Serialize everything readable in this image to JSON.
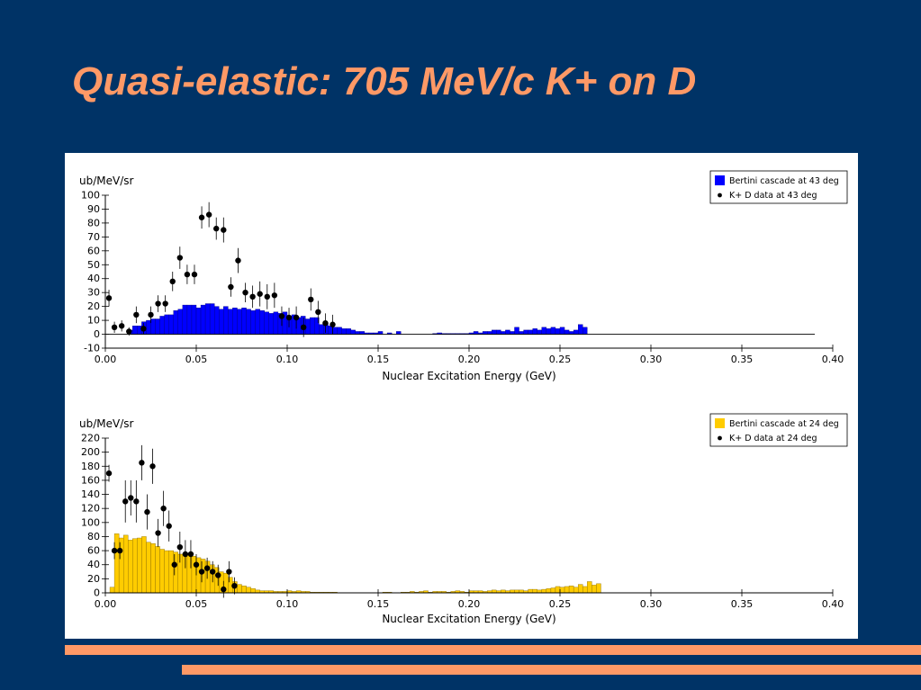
{
  "slide": {
    "title": "Quasi-elastic: 705 MeV/c K+ on D"
  },
  "colors": {
    "background": "#003366",
    "accent": "#ff9966",
    "panel": "#ffffff",
    "bars_top": "#0000ff",
    "bars_bottom": "#ffcc00"
  },
  "chart_data": [
    {
      "type": "bar",
      "ylabel": "ub/MeV/sr",
      "xlabel": "Nuclear Excitation Energy (GeV)",
      "xlim": [
        0,
        0.4
      ],
      "ylim": [
        -10,
        100
      ],
      "xticks": [
        "0.00",
        "0.05",
        "0.10",
        "0.15",
        "0.20",
        "0.25",
        "0.30",
        "0.35",
        "0.40"
      ],
      "yticks": [
        "-10",
        "0",
        "10",
        "20",
        "30",
        "40",
        "50",
        "60",
        "70",
        "80",
        "90",
        "100"
      ],
      "legend_position": "top-right",
      "grid": false,
      "series": [
        {
          "name": "Bertini cascade at 43 deg",
          "kind": "histogram",
          "bin_width": 0.0025,
          "x": [
            0.0125,
            0.015,
            0.0175,
            0.02,
            0.0225,
            0.025,
            0.0275,
            0.03,
            0.0325,
            0.035,
            0.0375,
            0.04,
            0.0425,
            0.045,
            0.0475,
            0.05,
            0.0525,
            0.055,
            0.0575,
            0.06,
            0.0625,
            0.065,
            0.0675,
            0.07,
            0.0725,
            0.075,
            0.0775,
            0.08,
            0.0825,
            0.085,
            0.0875,
            0.09,
            0.0925,
            0.095,
            0.0975,
            0.1,
            0.1025,
            0.105,
            0.1075,
            0.11,
            0.1125,
            0.115,
            0.1175,
            0.12,
            0.1225,
            0.125,
            0.1275,
            0.13,
            0.1325,
            0.135,
            0.1375,
            0.14,
            0.1425,
            0.145,
            0.1475,
            0.15,
            0.155,
            0.16,
            0.18,
            0.1825,
            0.185,
            0.1875,
            0.19,
            0.1925,
            0.195,
            0.1975,
            0.2,
            0.2025,
            0.205,
            0.2075,
            0.21,
            0.2125,
            0.215,
            0.2175,
            0.22,
            0.2225,
            0.225,
            0.2275,
            0.23,
            0.2325,
            0.235,
            0.2375,
            0.24,
            0.2425,
            0.245,
            0.2475,
            0.25,
            0.2525,
            0.255,
            0.2575,
            0.26,
            0.2625,
            0.265
          ],
          "values": [
            3,
            6,
            6,
            9,
            10,
            11,
            11,
            13,
            14,
            14,
            17,
            18,
            21,
            21,
            21,
            19,
            21,
            22,
            22,
            20,
            18,
            20,
            18,
            19,
            18,
            19,
            18,
            17,
            18,
            17,
            16,
            15,
            16,
            15,
            16,
            13,
            14,
            12,
            13,
            11,
            12,
            12,
            7,
            8,
            6,
            5,
            5,
            4,
            4,
            3,
            2,
            2,
            1,
            1,
            1,
            2,
            1,
            2,
            0.5,
            1,
            0.5,
            0.5,
            0.5,
            0.5,
            0.5,
            0.5,
            1,
            2,
            1,
            2,
            2,
            3,
            3,
            2,
            3,
            2,
            5,
            2,
            3,
            3,
            4,
            3,
            5,
            4,
            5,
            4,
            5,
            3,
            2,
            3,
            7,
            5,
            0
          ]
        },
        {
          "name": "K+ D data at 43 deg",
          "kind": "points",
          "x": [
            0.002,
            0.005,
            0.009,
            0.013,
            0.017,
            0.021,
            0.025,
            0.029,
            0.033,
            0.037,
            0.041,
            0.045,
            0.049,
            0.053,
            0.057,
            0.061,
            0.065,
            0.069,
            0.073,
            0.077,
            0.081,
            0.085,
            0.089,
            0.093,
            0.097,
            0.101,
            0.105,
            0.109,
            0.113,
            0.117,
            0.121,
            0.125
          ],
          "y": [
            26,
            5,
            6,
            2,
            14,
            4,
            14,
            22,
            22,
            38,
            55,
            43,
            43,
            84,
            86,
            76,
            75,
            34,
            53,
            30,
            27,
            29,
            27,
            28,
            13,
            12,
            12,
            5,
            25,
            16,
            8,
            7
          ],
          "yerr": [
            6,
            4,
            4,
            3,
            6,
            4,
            6,
            6,
            6,
            7,
            8,
            7,
            7,
            8,
            9,
            8,
            9,
            7,
            9,
            7,
            8,
            9,
            9,
            9,
            7,
            7,
            8,
            7,
            8,
            8,
            7,
            7
          ]
        }
      ]
    },
    {
      "type": "bar",
      "ylabel": "ub/MeV/sr",
      "xlabel": "Nuclear Excitation Energy (GeV)",
      "xlim": [
        0,
        0.4
      ],
      "ylim": [
        0,
        220
      ],
      "xticks": [
        "0.00",
        "0.05",
        "0.10",
        "0.15",
        "0.20",
        "0.25",
        "0.30",
        "0.35",
        "0.40"
      ],
      "yticks": [
        "0",
        "20",
        "40",
        "60",
        "80",
        "100",
        "120",
        "140",
        "160",
        "180",
        "200",
        "220"
      ],
      "legend_position": "top-right",
      "grid": false,
      "series": [
        {
          "name": "Bertini cascade at 24 deg",
          "kind": "histogram",
          "bin_width": 0.0025,
          "x": [
            0.0025,
            0.005,
            0.0075,
            0.01,
            0.0125,
            0.015,
            0.0175,
            0.02,
            0.0225,
            0.025,
            0.0275,
            0.03,
            0.0325,
            0.035,
            0.0375,
            0.04,
            0.0425,
            0.045,
            0.0475,
            0.05,
            0.0525,
            0.055,
            0.0575,
            0.06,
            0.0625,
            0.065,
            0.0675,
            0.07,
            0.0725,
            0.075,
            0.0775,
            0.08,
            0.0825,
            0.085,
            0.0875,
            0.09,
            0.0925,
            0.095,
            0.0975,
            0.1,
            0.1025,
            0.105,
            0.1075,
            0.11,
            0.1125,
            0.115,
            0.1175,
            0.12,
            0.1225,
            0.125,
            0.1275,
            0.13,
            0.1325,
            0.135,
            0.1375,
            0.14,
            0.1425,
            0.145,
            0.1475,
            0.15,
            0.1525,
            0.155,
            0.1575,
            0.16,
            0.1625,
            0.165,
            0.1675,
            0.17,
            0.1725,
            0.175,
            0.1775,
            0.18,
            0.1825,
            0.185,
            0.1875,
            0.19,
            0.1925,
            0.195,
            0.1975,
            0.2,
            0.2025,
            0.205,
            0.2075,
            0.21,
            0.2125,
            0.215,
            0.2175,
            0.22,
            0.2225,
            0.225,
            0.2275,
            0.23,
            0.2325,
            0.235,
            0.2375,
            0.24,
            0.2425,
            0.245,
            0.2475,
            0.25,
            0.2525,
            0.255,
            0.2575,
            0.26,
            0.2625,
            0.265,
            0.2675,
            0.27
          ],
          "values": [
            8,
            84,
            78,
            82,
            75,
            77,
            78,
            80,
            72,
            70,
            66,
            62,
            60,
            60,
            58,
            55,
            55,
            55,
            52,
            50,
            48,
            45,
            40,
            36,
            30,
            28,
            22,
            16,
            12,
            10,
            8,
            6,
            4,
            3,
            3,
            3,
            2,
            2,
            2,
            3,
            2,
            3,
            2,
            2,
            1,
            1,
            1,
            1,
            1,
            1,
            0,
            0,
            0,
            0,
            0,
            0,
            0,
            0,
            0,
            0,
            1,
            1,
            0,
            0,
            1,
            1,
            2,
            1,
            2,
            3,
            1,
            2,
            2,
            2,
            1,
            2,
            3,
            2,
            1,
            3,
            3,
            3,
            2,
            3,
            4,
            3,
            4,
            3,
            4,
            4,
            4,
            3,
            5,
            5,
            4,
            5,
            6,
            7,
            9,
            8,
            9,
            10,
            8,
            12,
            9,
            16,
            11,
            13
          ]
        },
        {
          "name": "K+ D data at 24 deg",
          "kind": "points",
          "x": [
            0.002,
            0.005,
            0.008,
            0.011,
            0.014,
            0.017,
            0.02,
            0.023,
            0.026,
            0.029,
            0.032,
            0.035,
            0.038,
            0.041,
            0.044,
            0.047,
            0.05,
            0.053,
            0.056,
            0.059,
            0.062,
            0.065,
            0.068,
            0.071
          ],
          "y": [
            170,
            60,
            60,
            130,
            135,
            130,
            185,
            115,
            180,
            85,
            120,
            95,
            40,
            65,
            55,
            55,
            40,
            30,
            35,
            30,
            25,
            5,
            30,
            10
          ],
          "yerr": [
            12,
            12,
            12,
            30,
            25,
            30,
            25,
            25,
            25,
            20,
            25,
            22,
            15,
            22,
            20,
            20,
            15,
            15,
            15,
            15,
            15,
            12,
            15,
            12
          ]
        }
      ]
    }
  ]
}
